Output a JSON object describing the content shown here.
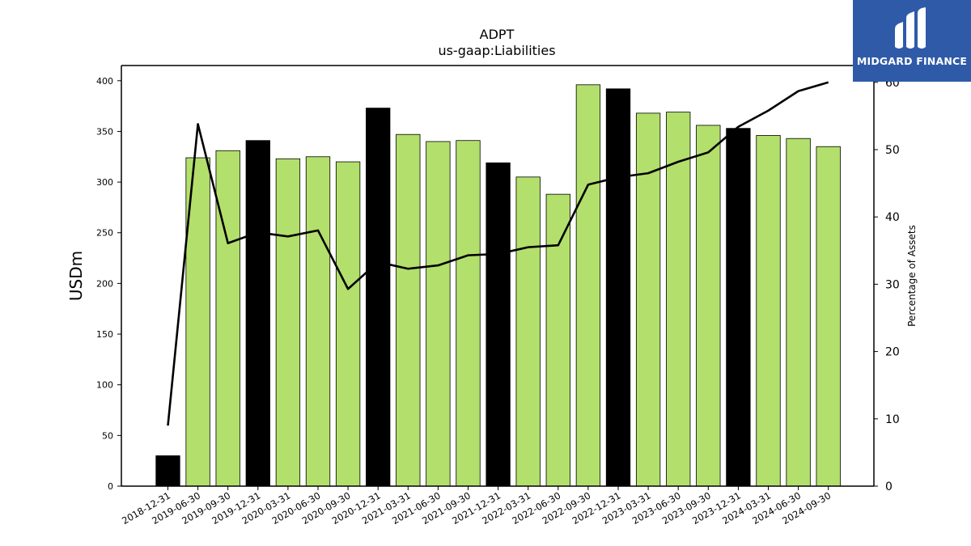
{
  "chart_data": {
    "type": "bar",
    "title": "ADPT",
    "subtitle": "us-gaap:Liabilities",
    "ylabel": "USDm",
    "ylabel_right": "Percentage of Assets",
    "ylim": [
      0,
      415
    ],
    "ylim_right": [
      0,
      62.5
    ],
    "yticks": [
      0,
      50,
      100,
      150,
      200,
      250,
      300,
      350,
      400
    ],
    "yticks_right": [
      0,
      10,
      20,
      30,
      40,
      50,
      60
    ],
    "categories": [
      "2018-12-31",
      "2019-06-30",
      "2019-09-30",
      "2019-12-31",
      "2020-03-31",
      "2020-06-30",
      "2020-09-30",
      "2020-12-31",
      "2021-03-31",
      "2021-06-30",
      "2021-09-30",
      "2021-12-31",
      "2022-03-31",
      "2022-06-30",
      "2022-09-30",
      "2022-12-31",
      "2023-03-31",
      "2023-06-30",
      "2023-09-30",
      "2023-12-31",
      "2024-03-31",
      "2024-06-30",
      "2024-09-30"
    ],
    "series": [
      {
        "axis": "left",
        "kind": "bar",
        "values": [
          30,
          324,
          331,
          341,
          323,
          325,
          320,
          373,
          347,
          340,
          341,
          319,
          305,
          288,
          396,
          392,
          368,
          369,
          356,
          353,
          346,
          343,
          335
        ],
        "colors": [
          "#000000",
          "#b3df6c",
          "#b3df6c",
          "#000000",
          "#b3df6c",
          "#b3df6c",
          "#b3df6c",
          "#000000",
          "#b3df6c",
          "#b3df6c",
          "#b3df6c",
          "#000000",
          "#b3df6c",
          "#b3df6c",
          "#b3df6c",
          "#000000",
          "#b3df6c",
          "#b3df6c",
          "#b3df6c",
          "#000000",
          "#b3df6c",
          "#b3df6c",
          "#b3df6c"
        ]
      },
      {
        "axis": "right",
        "kind": "line",
        "color": "#000000",
        "values": [
          9.0,
          53.8,
          36.1,
          37.7,
          37.1,
          38.0,
          29.3,
          33.3,
          32.3,
          32.8,
          34.3,
          34.5,
          35.5,
          35.8,
          44.8,
          45.9,
          46.5,
          48.2,
          49.6,
          53.4,
          55.8,
          58.7,
          60.0
        ]
      }
    ],
    "grid": false,
    "legend": "none"
  },
  "logo": {
    "text": "MIDGARD FINANCE",
    "icon": "midgard-logo-icon",
    "background": "#2f5aa8"
  }
}
